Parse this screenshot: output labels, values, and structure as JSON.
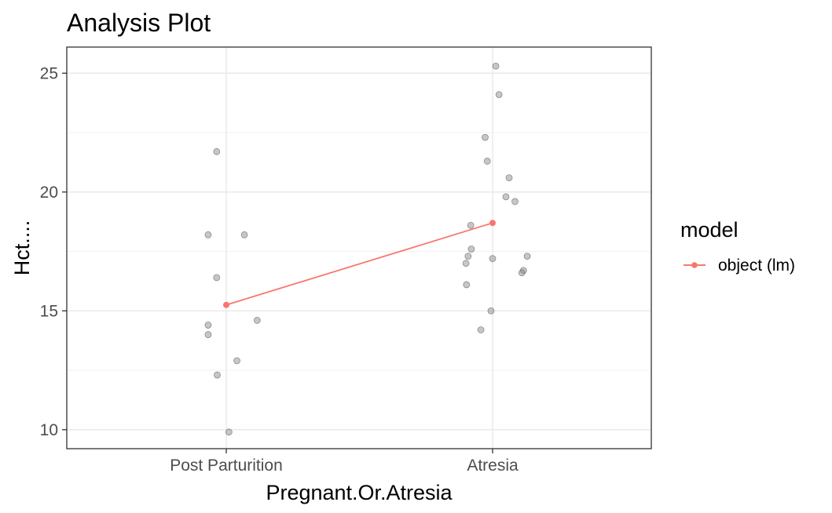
{
  "chart_data": {
    "type": "scatter",
    "title": "Analysis Plot",
    "xlabel": "Pregnant.Or.Atresia",
    "ylabel": "Hct....",
    "categories": [
      "Post Parturition",
      "Atresia"
    ],
    "ylim": [
      9.2,
      26.1
    ],
    "yticks": [
      10,
      15,
      20,
      25
    ],
    "grid": true,
    "legend_position": "right",
    "legend_title": "model",
    "points": [
      {
        "category": "Post Parturition",
        "jitter": -0.18,
        "y": 21.7
      },
      {
        "category": "Post Parturition",
        "jitter": -0.34,
        "y": 18.2
      },
      {
        "category": "Post Parturition",
        "jitter": 0.34,
        "y": 18.2
      },
      {
        "category": "Post Parturition",
        "jitter": -0.18,
        "y": 16.4
      },
      {
        "category": "Post Parturition",
        "jitter": 0.58,
        "y": 14.6
      },
      {
        "category": "Post Parturition",
        "jitter": -0.34,
        "y": 14.4
      },
      {
        "category": "Post Parturition",
        "jitter": -0.34,
        "y": 14.0
      },
      {
        "category": "Post Parturition",
        "jitter": 0.2,
        "y": 12.9
      },
      {
        "category": "Post Parturition",
        "jitter": -0.17,
        "y": 12.3
      },
      {
        "category": "Post Parturition",
        "jitter": 0.05,
        "y": 9.9
      },
      {
        "category": "Atresia",
        "jitter": 0.06,
        "y": 25.3
      },
      {
        "category": "Atresia",
        "jitter": 0.12,
        "y": 24.1
      },
      {
        "category": "Atresia",
        "jitter": -0.14,
        "y": 22.3
      },
      {
        "category": "Atresia",
        "jitter": -0.1,
        "y": 21.3
      },
      {
        "category": "Atresia",
        "jitter": 0.31,
        "y": 20.6
      },
      {
        "category": "Atresia",
        "jitter": 0.25,
        "y": 19.8
      },
      {
        "category": "Atresia",
        "jitter": 0.42,
        "y": 19.6
      },
      {
        "category": "Atresia",
        "jitter": -0.41,
        "y": 18.6
      },
      {
        "category": "Atresia",
        "jitter": -0.4,
        "y": 17.6
      },
      {
        "category": "Atresia",
        "jitter": 0.65,
        "y": 17.3
      },
      {
        "category": "Atresia",
        "jitter": -0.46,
        "y": 17.3
      },
      {
        "category": "Atresia",
        "jitter": 0.0,
        "y": 17.2
      },
      {
        "category": "Atresia",
        "jitter": -0.5,
        "y": 17.0
      },
      {
        "category": "Atresia",
        "jitter": 0.58,
        "y": 16.7
      },
      {
        "category": "Atresia",
        "jitter": 0.55,
        "y": 16.6
      },
      {
        "category": "Atresia",
        "jitter": -0.49,
        "y": 16.1
      },
      {
        "category": "Atresia",
        "jitter": -0.03,
        "y": 15.0
      },
      {
        "category": "Atresia",
        "jitter": -0.22,
        "y": 14.2
      }
    ],
    "series": [
      {
        "name": "object (lm)",
        "color": "#f8766d",
        "values": [
          15.25,
          18.7
        ]
      }
    ],
    "point_color": "#808080"
  }
}
